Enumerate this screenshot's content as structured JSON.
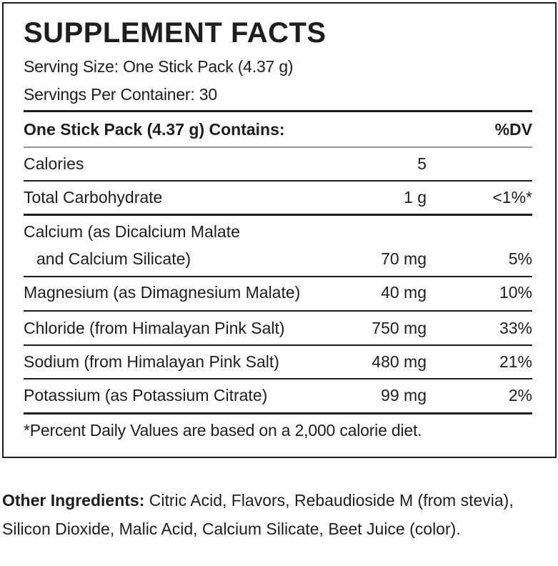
{
  "title": "SUPPLEMENT FACTS",
  "serving_size": "Serving Size: One Stick Pack (4.37 g)",
  "servings_per_container": "Servings Per Container: 30",
  "header": {
    "label": "One Stick Pack (4.37 g) Contains:",
    "dv": "%DV"
  },
  "rows": [
    {
      "name": "Calories",
      "amount": "5",
      "dv": ""
    },
    {
      "name": "Total Carbohydrate",
      "amount": "1 g",
      "dv": "<1%*"
    },
    {
      "name": "Calcium (as Dicalcium Malate",
      "name2": "and Calcium Silicate)",
      "amount": "70 mg",
      "dv": "5%"
    },
    {
      "name": "Magnesium (as Dimagnesium Malate)",
      "amount": "40 mg",
      "dv": "10%"
    },
    {
      "name": "Chloride (from Himalayan Pink Salt)",
      "amount": "750 mg",
      "dv": "33%"
    },
    {
      "name": "Sodium (from Himalayan Pink Salt)",
      "amount": "480 mg",
      "dv": "21%"
    },
    {
      "name": "Potassium (as Potassium Citrate)",
      "amount": "99 mg",
      "dv": "2%"
    }
  ],
  "footnote": "*Percent Daily Values are based on a 2,000 calorie diet.",
  "other_ingredients": {
    "label": "Other Ingredients:",
    "text": " Citric Acid, Flavors, Rebaudioside M (from stevia), Silicon Dioxide, Malic Acid, Calcium Silicate, Beet Juice (color)."
  }
}
